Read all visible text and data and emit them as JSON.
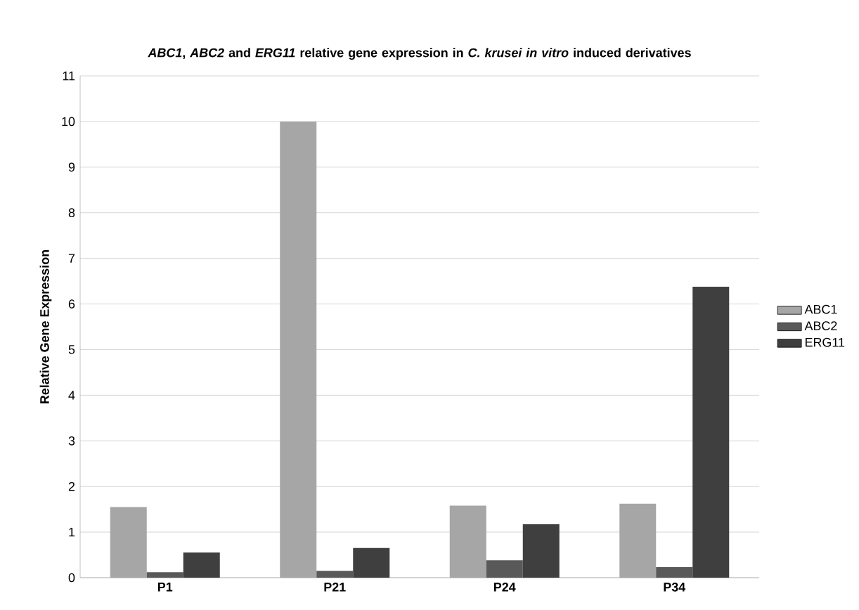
{
  "chart_data": {
    "type": "bar",
    "title": "*ABC1*, *ABC2* and *ERG11* relative gene expression in *C. krusei in vitro* induced derivatives",
    "ylabel": "Relative Gene Expression",
    "categories": [
      "P1",
      "P21",
      "P24",
      "P34"
    ],
    "series": [
      {
        "name": "ABC1",
        "color": "#a6a6a6",
        "values": [
          1.55,
          10.0,
          1.58,
          1.62
        ]
      },
      {
        "name": "ABC2",
        "color": "#595959",
        "values": [
          0.12,
          0.15,
          0.38,
          0.23
        ]
      },
      {
        "name": "ERG11",
        "color": "#3f3f3f",
        "values": [
          0.55,
          0.65,
          1.17,
          6.38
        ]
      }
    ],
    "ylim": [
      0,
      11
    ],
    "yticks": [
      0,
      1,
      2,
      3,
      4,
      5,
      6,
      7,
      8,
      9,
      10,
      11
    ],
    "grid": "y",
    "legend": "right"
  }
}
